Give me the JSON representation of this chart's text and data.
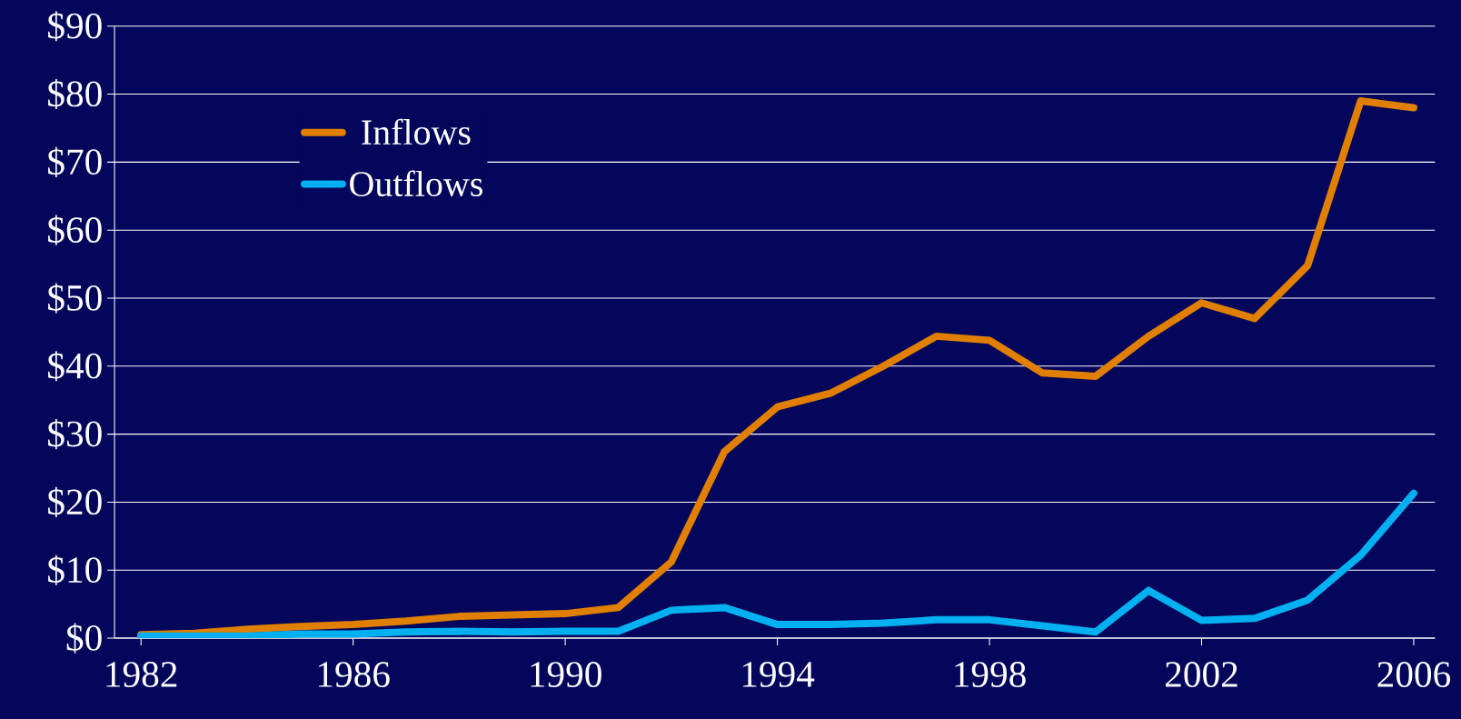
{
  "chart_data": {
    "type": "line",
    "x": [
      1982,
      1983,
      1984,
      1985,
      1986,
      1987,
      1988,
      1989,
      1990,
      1991,
      1992,
      1993,
      1994,
      1995,
      1996,
      1997,
      1998,
      1999,
      2000,
      2001,
      2002,
      2003,
      2004,
      2005,
      2006
    ],
    "series": [
      {
        "name": "Inflows",
        "color": "#e07f00",
        "values": [
          0.5,
          0.7,
          1.3,
          1.7,
          2.0,
          2.5,
          3.2,
          3.4,
          3.6,
          4.5,
          11.2,
          27.4,
          34,
          36,
          40,
          44.4,
          43.8,
          39,
          38.5,
          44.4,
          49.3,
          47,
          54.8,
          79,
          78
        ]
      },
      {
        "name": "Outflows",
        "color": "#00b0f0",
        "values": [
          0.3,
          0.3,
          0.3,
          0.6,
          0.6,
          0.9,
          1.0,
          0.9,
          1.0,
          1.0,
          4.1,
          4.5,
          2.0,
          2.0,
          2.2,
          2.7,
          2.7,
          1.8,
          0.9,
          7.0,
          2.6,
          2.9,
          5.6,
          12.2,
          21.3
        ]
      }
    ],
    "xlim": [
      1981.5,
      2006.4
    ],
    "ylim": [
      0,
      90
    ],
    "xticks": [
      1982,
      1986,
      1990,
      1994,
      1998,
      2002,
      2006
    ],
    "yticks": [
      {
        "value": 0,
        "label": "$0"
      },
      {
        "value": 10,
        "label": "$10"
      },
      {
        "value": 20,
        "label": "$20"
      },
      {
        "value": 30,
        "label": "$30"
      },
      {
        "value": 40,
        "label": "$40"
      },
      {
        "value": 50,
        "label": "$50"
      },
      {
        "value": 60,
        "label": "$60"
      },
      {
        "value": 70,
        "label": "$70"
      },
      {
        "value": 80,
        "label": "$80"
      },
      {
        "value": 90,
        "label": "$90"
      }
    ],
    "grid": "y",
    "legend": "top left",
    "marker": "none",
    "line_style": "solid"
  }
}
